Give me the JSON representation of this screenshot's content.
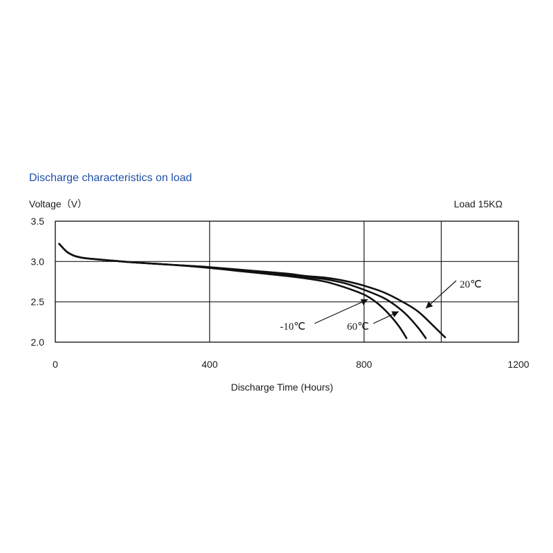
{
  "chart_data": {
    "type": "line",
    "title": "Discharge characteristics on load",
    "ylabel": "Voltage（V）",
    "xlabel": "Discharge Time (Hours)",
    "note": "Load 15KΩ",
    "xlim": [
      0,
      1200
    ],
    "ylim": [
      2.0,
      3.5
    ],
    "x_ticks": [
      0,
      400,
      800,
      1200
    ],
    "x_tick_labels": [
      "0",
      "400",
      "800",
      "1200"
    ],
    "y_ticks": [
      2.0,
      2.5,
      3.0,
      3.5
    ],
    "y_tick_labels": [
      "2.0",
      "2.5",
      "3.0",
      "3.5"
    ],
    "grid": true,
    "series": [
      {
        "name": "-10℃",
        "x": [
          10,
          30,
          50,
          80,
          150,
          200,
          300,
          400,
          500,
          600,
          650,
          700,
          750,
          800,
          830,
          860,
          890,
          910
        ],
        "y": [
          3.22,
          3.12,
          3.07,
          3.04,
          3.01,
          2.99,
          2.96,
          2.92,
          2.87,
          2.82,
          2.79,
          2.75,
          2.68,
          2.59,
          2.5,
          2.37,
          2.2,
          2.05
        ]
      },
      {
        "name": "60℃",
        "x": [
          10,
          30,
          50,
          80,
          150,
          200,
          300,
          400,
          500,
          600,
          650,
          700,
          750,
          800,
          850,
          880,
          910,
          940,
          960
        ],
        "y": [
          3.22,
          3.12,
          3.07,
          3.04,
          3.01,
          2.99,
          2.96,
          2.93,
          2.88,
          2.84,
          2.81,
          2.78,
          2.73,
          2.65,
          2.55,
          2.46,
          2.34,
          2.18,
          2.05
        ]
      },
      {
        "name": "20℃",
        "x": [
          10,
          30,
          50,
          80,
          150,
          200,
          300,
          400,
          500,
          600,
          650,
          700,
          750,
          800,
          850,
          900,
          940,
          980,
          1010
        ],
        "y": [
          3.22,
          3.12,
          3.07,
          3.04,
          3.01,
          2.99,
          2.96,
          2.93,
          2.89,
          2.85,
          2.82,
          2.8,
          2.76,
          2.7,
          2.62,
          2.5,
          2.38,
          2.2,
          2.06
        ]
      }
    ],
    "annotations": [
      {
        "text": "-10℃",
        "series": "-10℃",
        "at": [
          810,
          2.53
        ]
      },
      {
        "text": "60℃",
        "series": "60℃",
        "at": [
          890,
          2.38
        ]
      },
      {
        "text": "20℃",
        "series": "20℃",
        "at": [
          960,
          2.42
        ]
      }
    ]
  }
}
